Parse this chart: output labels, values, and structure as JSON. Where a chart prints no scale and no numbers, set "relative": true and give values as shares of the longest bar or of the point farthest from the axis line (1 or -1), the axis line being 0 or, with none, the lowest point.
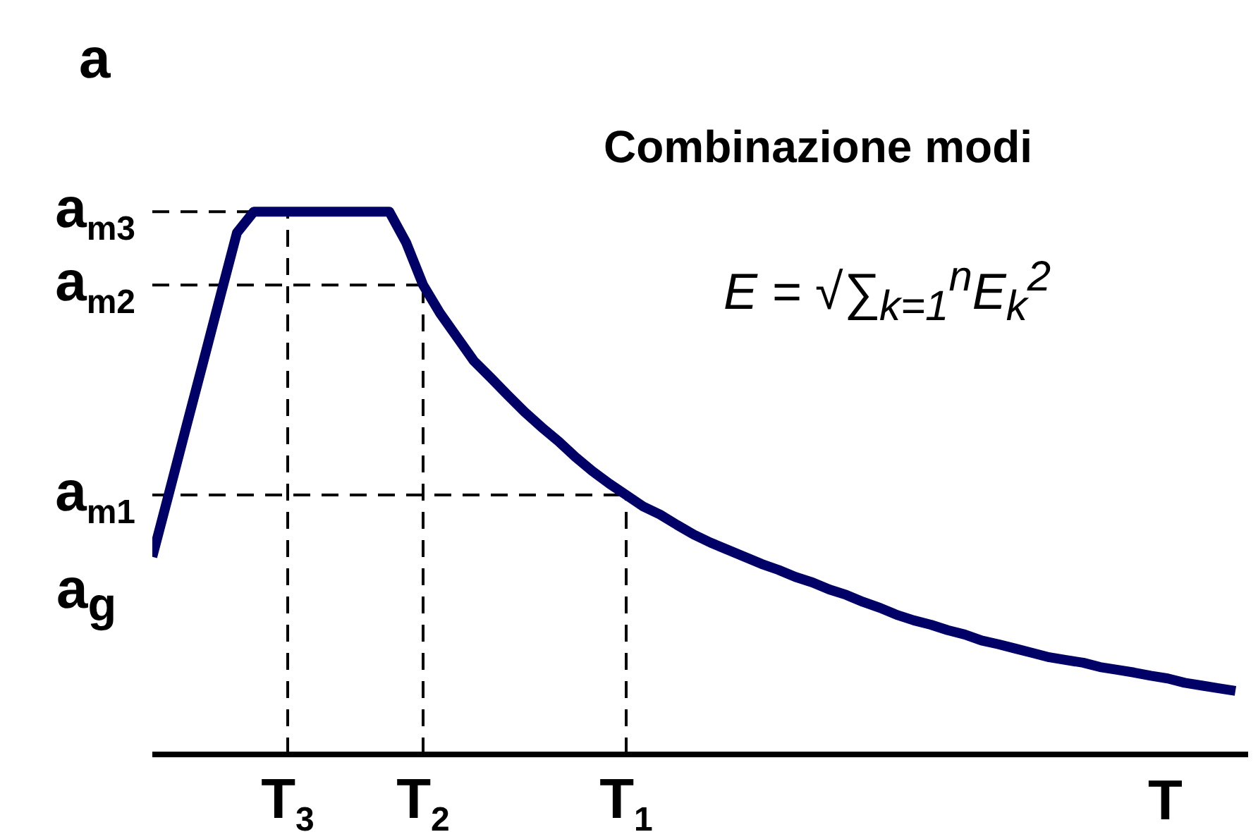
{
  "chart_data": {
    "type": "line",
    "title": "Combinazione modi",
    "xlabel": "T",
    "ylabel": "a",
    "relative": true,
    "categories": [
      null,
      null,
      null,
      null,
      null,
      null,
      null,
      null,
      "T$_{3}$",
      null,
      null,
      null,
      null,
      null,
      null,
      null,
      "T$_{2}$",
      null,
      null,
      null,
      null,
      null,
      null,
      null,
      null,
      null,
      null,
      null,
      "T$_{1}$",
      null,
      null,
      null,
      null,
      null,
      null,
      null,
      null,
      null,
      null,
      null,
      null,
      null,
      null,
      null,
      null,
      null,
      null,
      null,
      null,
      null,
      null,
      null,
      null,
      null,
      null,
      null,
      null,
      null,
      null,
      null,
      null,
      null,
      null,
      null,
      null
    ],
    "series": [
      {
        "color": "#000066",
        "line_style": "solid",
        "values": [
          0.364,
          0.483,
          0.603,
          0.722,
          0.842,
          0.961,
          1,
          1,
          1,
          1,
          1,
          1,
          1,
          1,
          1,
          0.943,
          0.865,
          0.813,
          0.769,
          0.725,
          0.694,
          0.662,
          0.631,
          0.603,
          0.577,
          0.548,
          0.522,
          0.499,
          0.478,
          0.457,
          0.442,
          0.423,
          0.405,
          0.39,
          0.377,
          0.364,
          0.351,
          0.34,
          0.327,
          0.317,
          0.304,
          0.294,
          0.281,
          0.27,
          0.257,
          0.247,
          0.239,
          0.229,
          0.221,
          0.21,
          0.203,
          0.195,
          0.187,
          0.179,
          0.174,
          0.169,
          0.161,
          0.156,
          0.151,
          0.145,
          0.14,
          0.132,
          0.127,
          0.122,
          0.117
        ]
      }
    ],
    "ref_lines": [
      {
        "axis": "y",
        "value": 1,
        "label": "a$_{m3}$",
        "line_style": "dashed",
        "color": "#000000"
      },
      {
        "axis": "y",
        "value": 0.865,
        "label": "a$_{m2}$",
        "line_style": "dashed",
        "color": "#000000"
      },
      {
        "axis": "y",
        "value": 0.478,
        "label": "a$_{m1}$",
        "line_style": "dashed",
        "color": "#000000"
      },
      {
        "axis": "x",
        "value": "T$_{3}$",
        "line_style": "dashed",
        "color": "#000000"
      },
      {
        "axis": "x",
        "value": "T$_{2}$",
        "line_style": "dashed",
        "color": "#000000"
      },
      {
        "axis": "x",
        "value": "T$_{1}$",
        "line_style": "dashed",
        "color": "#000000"
      }
    ],
    "annotations": [
      "a$_{g}$",
      "E = √∑$_{k=1}$$^{n}$E$_{k}$$^{2}$"
    ]
  }
}
